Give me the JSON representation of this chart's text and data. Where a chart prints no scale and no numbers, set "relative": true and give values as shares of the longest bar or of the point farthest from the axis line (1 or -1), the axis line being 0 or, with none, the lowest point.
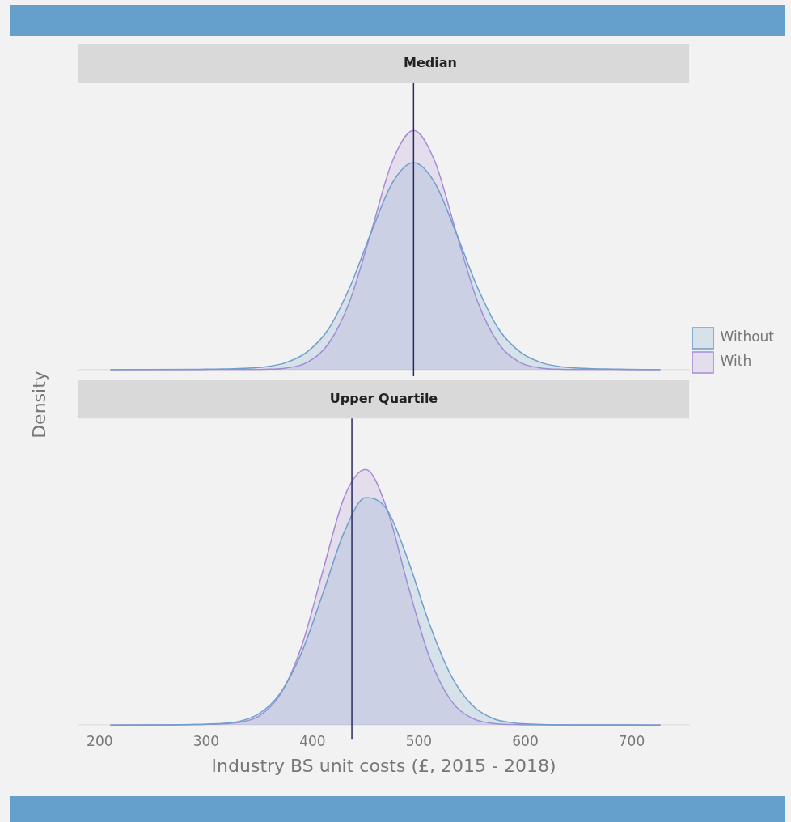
{
  "chart_data": [
    {
      "type": "area",
      "title": "Median",
      "ylabel": "Density",
      "relative": true,
      "xlim": [
        180,
        754
      ],
      "xticks": [
        200,
        300,
        400,
        500,
        600,
        700
      ],
      "tick_labels": false,
      "legend": "right",
      "x": [
        210,
        295,
        315,
        335,
        355,
        375,
        395,
        415,
        435,
        455,
        475,
        495,
        515,
        535,
        555,
        575,
        595,
        615,
        635,
        655,
        675,
        695,
        727
      ],
      "series": [
        {
          "name": "Without",
          "color": "#6f9fcc",
          "values": [
            0,
            0.002,
            0.003,
            0.006,
            0.012,
            0.03,
            0.075,
            0.17,
            0.345,
            0.572,
            0.781,
            0.866,
            0.781,
            0.572,
            0.345,
            0.17,
            0.075,
            0.03,
            0.012,
            0.006,
            0.003,
            0.002,
            0
          ]
        },
        {
          "name": "With",
          "color": "#a98ad6",
          "values": [
            0,
            0,
            0.001,
            0.001,
            0.002,
            0.007,
            0.031,
            0.109,
            0.287,
            0.575,
            0.871,
            1,
            0.871,
            0.575,
            0.287,
            0.109,
            0.031,
            0.007,
            0.002,
            0.001,
            0.001,
            0,
            0
          ]
        }
      ],
      "ref_lines": [
        {
          "axis": "x",
          "value": 495,
          "color": "#2b2b5e"
        }
      ]
    },
    {
      "type": "area",
      "title": "Upper Quartile",
      "xlabel": "Industry BS unit costs (£, 2015 - 2018)",
      "relative": true,
      "xlim": [
        180,
        754
      ],
      "xticks": [
        200,
        300,
        400,
        500,
        600,
        700
      ],
      "x": [
        210,
        270,
        290,
        310,
        330,
        350,
        370,
        390,
        410,
        430,
        450,
        470,
        490,
        510,
        530,
        550,
        570,
        590,
        610,
        630,
        650,
        727
      ],
      "series": [
        {
          "color": "#6f9fcc",
          "values": [
            0,
            0.001,
            0.002,
            0.005,
            0.013,
            0.045,
            0.127,
            0.286,
            0.518,
            0.757,
            0.89,
            0.843,
            0.643,
            0.395,
            0.196,
            0.078,
            0.025,
            0.008,
            0.003,
            0.001,
            0.001,
            0
          ]
        },
        {
          "color": "#a98ad6",
          "values": [
            0,
            0.001,
            0.002,
            0.004,
            0.01,
            0.036,
            0.122,
            0.312,
            0.607,
            0.894,
            1,
            0.846,
            0.543,
            0.264,
            0.097,
            0.027,
            0.006,
            0.002,
            0.001,
            0.001,
            0,
            0
          ]
        }
      ],
      "ref_lines": [
        {
          "axis": "x",
          "value": 437,
          "color": "#2b2b5e"
        }
      ]
    }
  ]
}
